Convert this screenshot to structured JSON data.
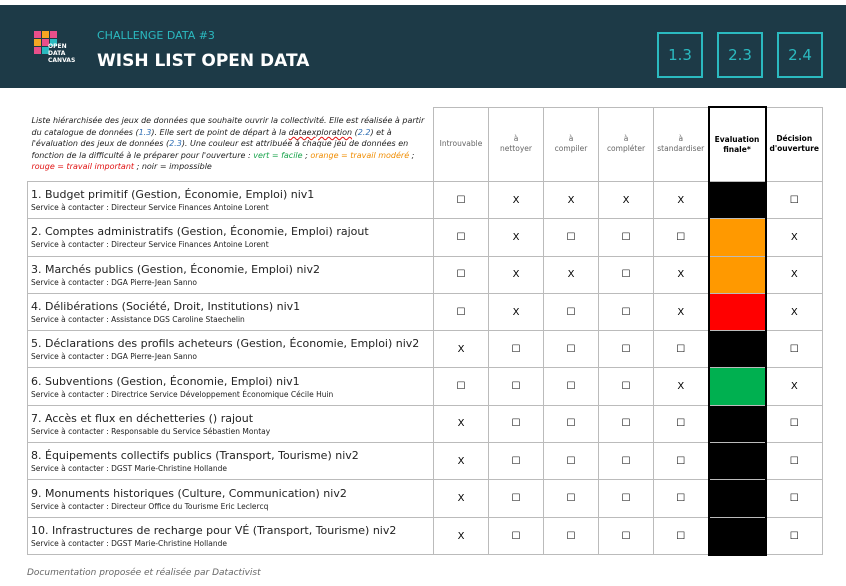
{
  "header": {
    "subtitle": "CHALLENGE DATA #3",
    "title": "WISH LIST OPEN DATA",
    "logo": [
      "OPEN",
      "DATA",
      "CANVAS"
    ],
    "badges": [
      "1.3",
      "2.3",
      "2.4"
    ]
  },
  "table": {
    "intro": [
      {
        "text": "Liste hiérarchisée des jeux de données que souhaite ouvrir la collectivité. Elle est réalisée à partir du catalogue de données (",
        "color": "#222"
      },
      {
        "text": "1.3",
        "color": "#2f6fb5"
      },
      {
        "text": "). Elle sert de point de départ à la ",
        "color": "#222"
      },
      {
        "text": "dataexploration",
        "color": "#222"
      },
      {
        "text": " (",
        "color": "#222"
      },
      {
        "text": "2.2",
        "color": "#2f6fb5"
      },
      {
        "text": ") et à l'évaluation des jeux de données (",
        "color": "#222"
      },
      {
        "text": "2.3",
        "color": "#2f6fb5"
      },
      {
        "text": "). Une couleur est attribuée à chaque jeu de données en fonction de la difficulté à le préparer pour l'ouverture : ",
        "color": "#222"
      },
      {
        "text": "vert = facile",
        "color": "#16a34a"
      },
      {
        "text": " ; ",
        "color": "#222"
      },
      {
        "text": "orange = travail modéré",
        "color": "#f08c00"
      },
      {
        "text": " ; ",
        "color": "#222"
      },
      {
        "text": "rouge = travail important",
        "color": "#e01010"
      },
      {
        "text": " ; noir = impossible",
        "color": "#222"
      }
    ],
    "columns": [
      [
        "Introuvable"
      ],
      [
        "à",
        "nettoyer"
      ],
      [
        "à",
        "compiler"
      ],
      [
        "à",
        "compléter"
      ],
      [
        "à",
        "standardiser"
      ],
      [
        "Evaluation",
        "finale*"
      ],
      [
        "Décision",
        "d'ouverture"
      ]
    ],
    "rows": [
      {
        "title": "1. Budget primitif (Gestion, Économie, Emploi) niv1",
        "contact": "Service à contacter : Directeur Service Finances Antoine Lorent",
        "cells": [
          "☐",
          "X",
          "X",
          "X",
          "X"
        ],
        "evaluation": "#000000",
        "decision": "☐"
      },
      {
        "title": "2. Comptes administratifs (Gestion, Économie, Emploi) rajout",
        "contact": "Service à contacter : Directeur Service Finances Antoine Lorent",
        "cells": [
          "☐",
          "X",
          "☐",
          "☐",
          "☐"
        ],
        "evaluation": "#ff9900",
        "decision": "X"
      },
      {
        "title": "3. Marchés publics (Gestion, Économie, Emploi) niv2",
        "contact": "Service à contacter : DGA Pierre-Jean Sanno",
        "cells": [
          "☐",
          "X",
          "X",
          "☐",
          "X"
        ],
        "evaluation": "#ff9900",
        "decision": "X"
      },
      {
        "title": "4. Délibérations (Société, Droit, Institutions) niv1",
        "contact": "Service à contacter : Assistance DGS Caroline Staechelin",
        "cells": [
          "☐",
          "X",
          "☐",
          "☐",
          "X"
        ],
        "evaluation": "#ff0000",
        "decision": "X"
      },
      {
        "title": "5. Déclarations des profils acheteurs (Gestion, Économie, Emploi) niv2",
        "contact": "Service à contacter : DGA Pierre-Jean Sanno",
        "cells": [
          "X",
          "☐",
          "☐",
          "☐",
          "☐"
        ],
        "evaluation": "#000000",
        "decision": "☐"
      },
      {
        "title": "6. Subventions (Gestion, Économie, Emploi) niv1",
        "contact": "Service à contacter : Directrice Service Développement Économique Cécile Huin",
        "cells": [
          "☐",
          "☐",
          "☐",
          "☐",
          "X"
        ],
        "evaluation": "#00b050",
        "decision": "X"
      },
      {
        "title": "7. Accès et flux en déchetteries () rajout",
        "contact": "Service à contacter : Responsable du Service Sébastien Montay",
        "cells": [
          "X",
          "☐",
          "☐",
          "☐",
          "☐"
        ],
        "evaluation": "#000000",
        "decision": "☐"
      },
      {
        "title": "8. Équipements collectifs publics (Transport, Tourisme) niv2",
        "contact": "Service à contacter : DGST Marie-Christine Hollande",
        "cells": [
          "X",
          "☐",
          "☐",
          "☐",
          "☐"
        ],
        "evaluation": "#000000",
        "decision": "☐"
      },
      {
        "title": "9. Monuments historiques (Culture, Communication) niv2",
        "contact": "Service à contacter : Directeur Office du Tourisme Eric Leclercq",
        "cells": [
          "X",
          "☐",
          "☐",
          "☐",
          "☐"
        ],
        "evaluation": "#000000",
        "decision": "☐"
      },
      {
        "title": "10. Infrastructures de recharge pour VÉ (Transport, Tourisme) niv2",
        "contact": "Service à contacter : DGST Marie-Christine Hollande",
        "cells": [
          "X",
          "☐",
          "☐",
          "☐",
          "☐"
        ],
        "evaluation": "#000000",
        "decision": "☐"
      }
    ]
  },
  "footer": "Documentation proposée et réalisée par Datactivist"
}
